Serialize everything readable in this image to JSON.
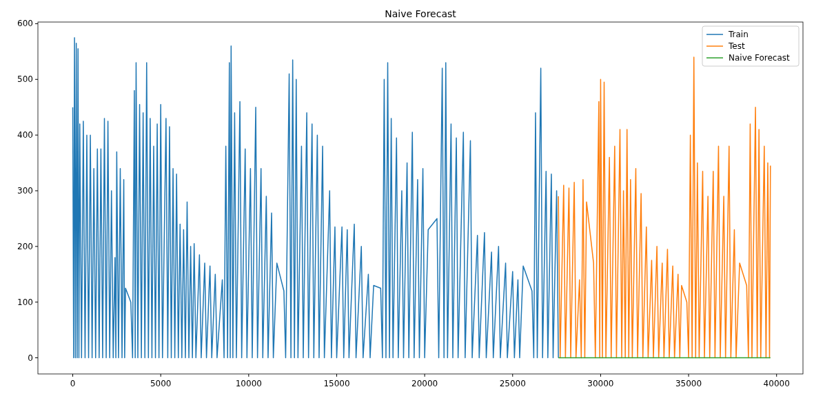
{
  "chart_data": {
    "type": "line",
    "title": "Naive Forecast",
    "xlim": [
      -1980,
      41500
    ],
    "ylim": [
      -29,
      603
    ],
    "xticks": [
      0,
      5000,
      10000,
      15000,
      20000,
      25000,
      30000,
      35000,
      40000
    ],
    "yticks": [
      0,
      100,
      200,
      300,
      400,
      500,
      600
    ],
    "grid": false,
    "legend": "top right",
    "series": [
      {
        "name": "Train",
        "color": "#1f77b4",
        "x": [
          0,
          50,
          100,
          150,
          200,
          250,
          300,
          350,
          400,
          500,
          600,
          700,
          800,
          900,
          1000,
          1100,
          1200,
          1300,
          1400,
          1500,
          1600,
          1700,
          1800,
          1900,
          2000,
          2100,
          2200,
          2300,
          2400,
          2450,
          2500,
          2600,
          2700,
          2800,
          2900,
          2950,
          3000,
          3300,
          3400,
          3500,
          3550,
          3600,
          3700,
          3800,
          3900,
          4000,
          4100,
          4200,
          4300,
          4400,
          4500,
          4600,
          4700,
          4800,
          4900,
          5000,
          5100,
          5300,
          5400,
          5500,
          5600,
          5700,
          5800,
          5900,
          6000,
          6100,
          6200,
          6300,
          6400,
          6500,
          6600,
          6700,
          6800,
          6900,
          7000,
          7200,
          7300,
          7500,
          7600,
          7800,
          7900,
          8100,
          8200,
          8500,
          8600,
          8700,
          8800,
          8900,
          8950,
          9000,
          9100,
          9200,
          9300,
          9500,
          9600,
          9800,
          9900,
          10100,
          10200,
          10400,
          10500,
          10700,
          10800,
          11000,
          11100,
          11300,
          11400,
          11600,
          12000,
          12100,
          12300,
          12400,
          12500,
          12600,
          12700,
          12800,
          13000,
          13100,
          13300,
          13400,
          13600,
          13700,
          13900,
          14000,
          14200,
          14300,
          14600,
          14700,
          14900,
          15000,
          15300,
          15400,
          15600,
          15700,
          16000,
          16100,
          16400,
          16500,
          16800,
          16900,
          17100,
          17500,
          17600,
          17700,
          17800,
          17900,
          18000,
          18100,
          18200,
          18400,
          18500,
          18700,
          18800,
          19000,
          19100,
          19300,
          19400,
          19600,
          19700,
          19900,
          20000,
          20200,
          20700,
          20800,
          21000,
          21100,
          21200,
          21300,
          21500,
          21600,
          21800,
          21900,
          22200,
          22300,
          22600,
          22700,
          23000,
          23100,
          23400,
          23500,
          23800,
          23900,
          24200,
          24300,
          24600,
          24700,
          25000,
          25100,
          25300,
          25400,
          25600,
          26100,
          26200,
          26300,
          26400,
          26600,
          26700,
          26900,
          27000,
          27200,
          27300,
          27500,
          27600
        ],
        "values": [
          450,
          0,
          575,
          0,
          565,
          0,
          555,
          0,
          420,
          0,
          425,
          0,
          400,
          0,
          400,
          0,
          340,
          0,
          375,
          0,
          375,
          0,
          430,
          0,
          425,
          0,
          300,
          0,
          180,
          0,
          370,
          0,
          340,
          0,
          320,
          0,
          125,
          100,
          0,
          480,
          0,
          530,
          0,
          455,
          0,
          440,
          0,
          530,
          0,
          430,
          0,
          380,
          0,
          420,
          0,
          455,
          0,
          430,
          0,
          415,
          0,
          340,
          0,
          330,
          0,
          240,
          0,
          230,
          0,
          280,
          0,
          200,
          0,
          205,
          0,
          185,
          0,
          170,
          0,
          165,
          0,
          150,
          0,
          140,
          0,
          380,
          0,
          530,
          0,
          560,
          0,
          440,
          0,
          460,
          0,
          375,
          0,
          340,
          0,
          450,
          0,
          340,
          0,
          290,
          0,
          260,
          0,
          170,
          120,
          0,
          510,
          0,
          535,
          0,
          500,
          0,
          380,
          0,
          440,
          0,
          420,
          0,
          400,
          0,
          380,
          0,
          300,
          0,
          235,
          0,
          235,
          0,
          230,
          0,
          240,
          0,
          200,
          0,
          150,
          0,
          130,
          125,
          0,
          500,
          0,
          530,
          0,
          430,
          0,
          395,
          0,
          300,
          0,
          350,
          0,
          405,
          0,
          320,
          0,
          340,
          0,
          230,
          250,
          0,
          520,
          0,
          530,
          0,
          420,
          0,
          395,
          0,
          405,
          0,
          390,
          0,
          220,
          0,
          225,
          0,
          190,
          0,
          200,
          0,
          170,
          0,
          155,
          0,
          140,
          0,
          165,
          120,
          0,
          440,
          0,
          520,
          0,
          335,
          0,
          330,
          0,
          300,
          0
        ]
      },
      {
        "name": "Test",
        "color": "#ff7f0e",
        "x": [
          27600,
          27700,
          27900,
          28000,
          28200,
          28300,
          28500,
          28600,
          28800,
          28900,
          29000,
          29100,
          29200,
          29600,
          29700,
          29900,
          29950,
          30000,
          30100,
          30200,
          30300,
          30500,
          30600,
          30800,
          30900,
          31100,
          31200,
          31300,
          31400,
          31500,
          31600,
          31700,
          31800,
          32000,
          32100,
          32300,
          32400,
          32600,
          32700,
          32900,
          33000,
          33200,
          33300,
          33500,
          33600,
          33800,
          33900,
          34100,
          34200,
          34400,
          34500,
          34600,
          34900,
          35000,
          35100,
          35200,
          35300,
          35400,
          35500,
          35600,
          35800,
          35900,
          36100,
          36200,
          36400,
          36500,
          36700,
          36800,
          37000,
          37100,
          37300,
          37400,
          37600,
          37700,
          37900,
          38300,
          38400,
          38500,
          38600,
          38800,
          38900,
          39000,
          39100,
          39300,
          39400,
          39500,
          39600,
          39650
        ],
        "values": [
          290,
          0,
          310,
          0,
          305,
          0,
          315,
          0,
          140,
          0,
          320,
          0,
          280,
          170,
          0,
          460,
          0,
          500,
          0,
          495,
          0,
          360,
          0,
          380,
          0,
          410,
          0,
          300,
          0,
          410,
          0,
          320,
          0,
          340,
          0,
          295,
          0,
          235,
          0,
          175,
          0,
          200,
          0,
          170,
          0,
          195,
          0,
          165,
          0,
          150,
          0,
          130,
          100,
          0,
          400,
          0,
          540,
          0,
          350,
          0,
          335,
          0,
          290,
          0,
          335,
          0,
          380,
          0,
          290,
          0,
          380,
          0,
          230,
          0,
          170,
          130,
          0,
          420,
          0,
          450,
          0,
          410,
          0,
          380,
          0,
          350,
          0,
          345
        ]
      },
      {
        "name": "Naive Forecast",
        "color": "#2ca02c",
        "x": [
          27600,
          39650
        ],
        "values": [
          0,
          0
        ]
      }
    ]
  }
}
